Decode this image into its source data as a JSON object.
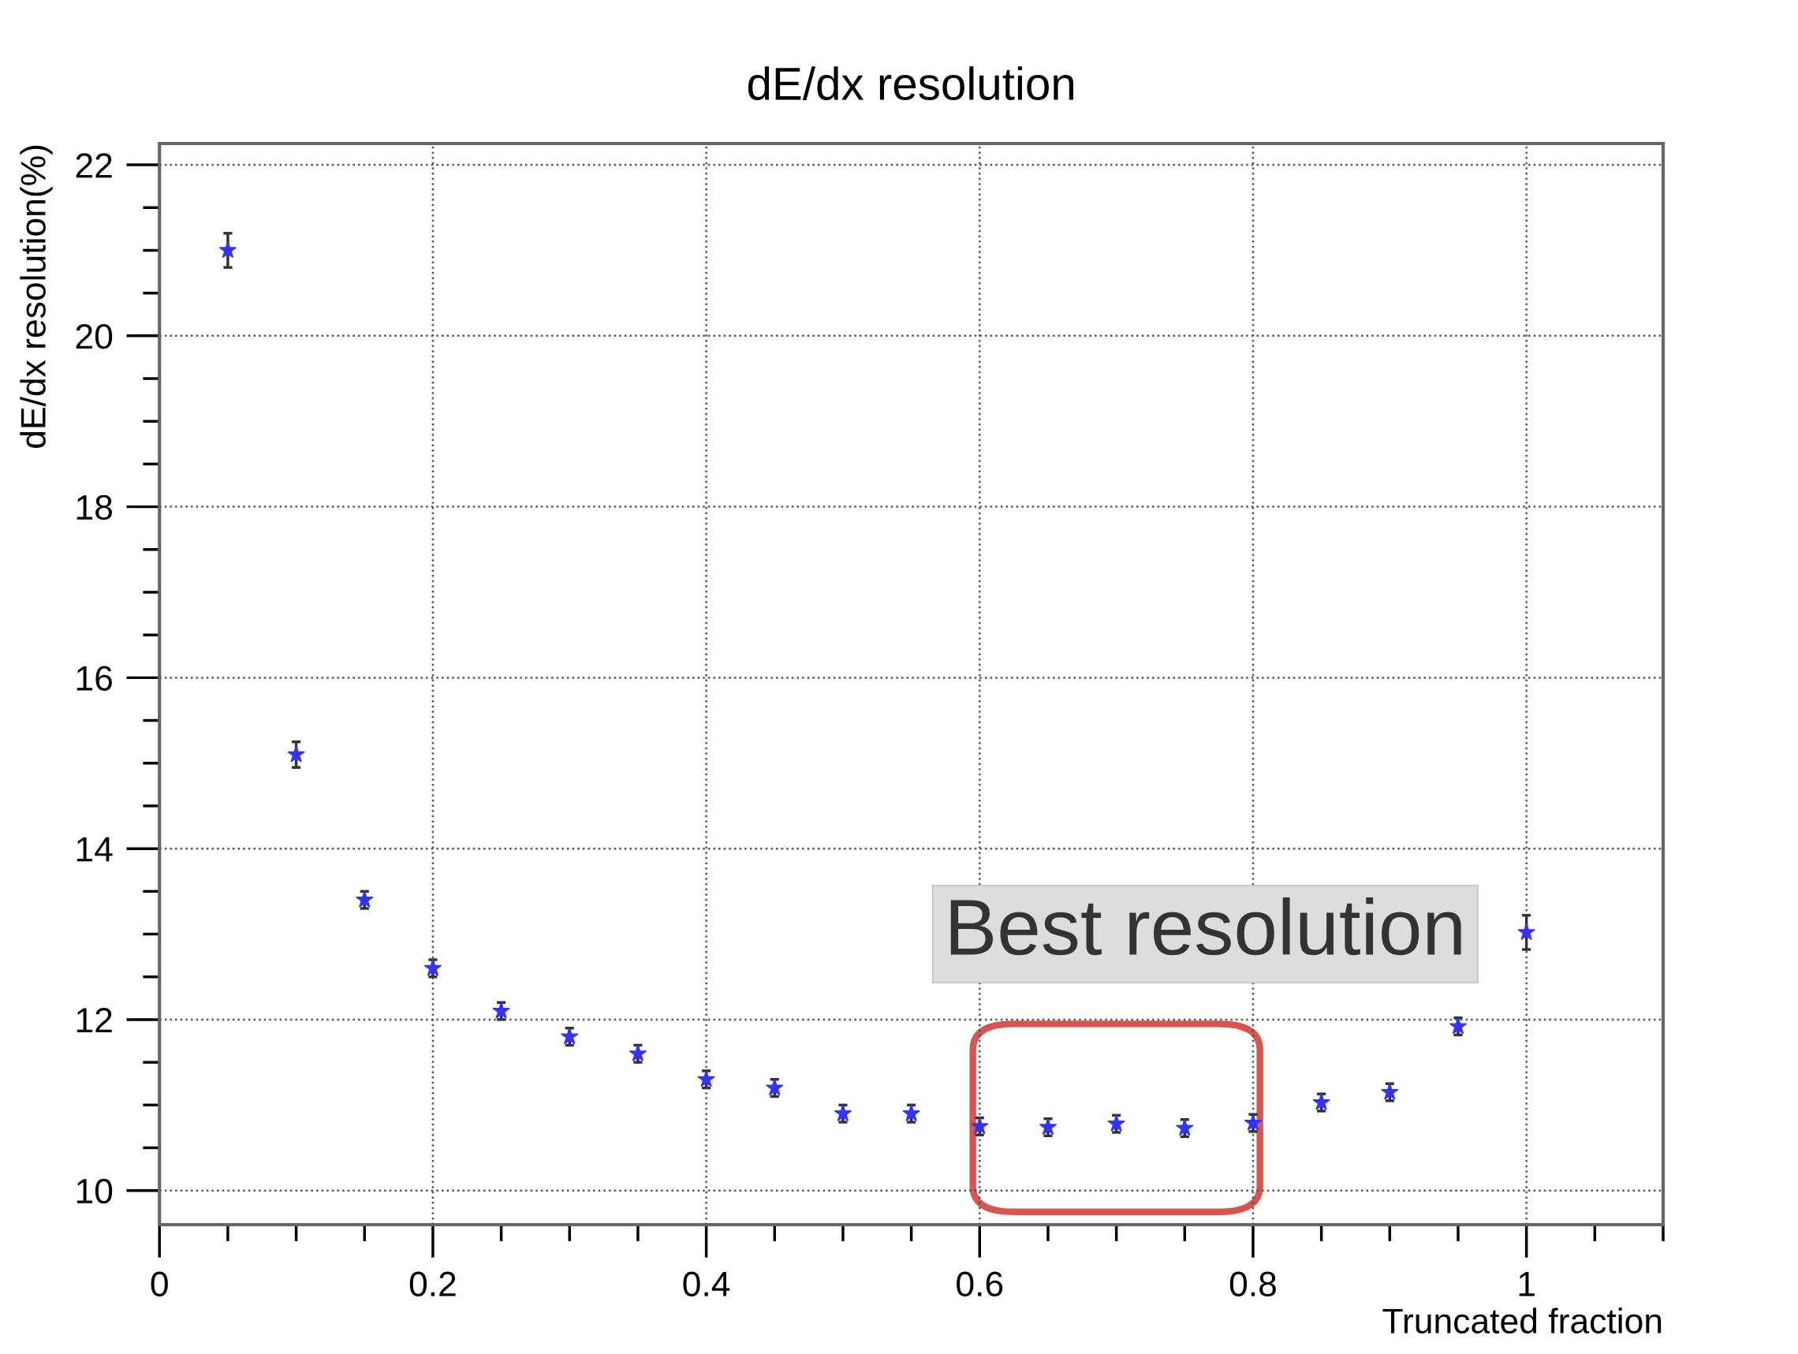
{
  "chart_data": {
    "type": "scatter",
    "title": "dE/dx resolution",
    "xlabel": "Truncated fraction",
    "ylabel": "dE/dx resolution(%)",
    "x": [
      0.05,
      0.1,
      0.15,
      0.2,
      0.25,
      0.3,
      0.35,
      0.4,
      0.45,
      0.5,
      0.55,
      0.6,
      0.65,
      0.7,
      0.75,
      0.8,
      0.85,
      0.9,
      0.95,
      1.0
    ],
    "series": [
      {
        "color": "#3333ff",
        "values": [
          21.0,
          15.1,
          13.4,
          12.6,
          12.1,
          11.8,
          11.6,
          11.3,
          11.2,
          10.9,
          10.9,
          10.75,
          10.74,
          10.78,
          10.73,
          10.79,
          11.03,
          11.15,
          11.92,
          13.02
        ],
        "errors": [
          0.2,
          0.15,
          0.1,
          0.1,
          0.1,
          0.1,
          0.1,
          0.1,
          0.1,
          0.1,
          0.1,
          0.1,
          0.1,
          0.1,
          0.1,
          0.1,
          0.1,
          0.1,
          0.1,
          0.2
        ]
      }
    ],
    "marker": "star",
    "grid": true,
    "legend": false,
    "xlim": [
      0,
      1.1
    ],
    "xticks": [
      0,
      0.2,
      0.4,
      0.6,
      0.8,
      1
    ],
    "ylim": [
      9.6,
      22.25
    ],
    "yticks": [
      10,
      12,
      14,
      16,
      18,
      20,
      22
    ],
    "annotations": [
      "Best resolution"
    ]
  }
}
